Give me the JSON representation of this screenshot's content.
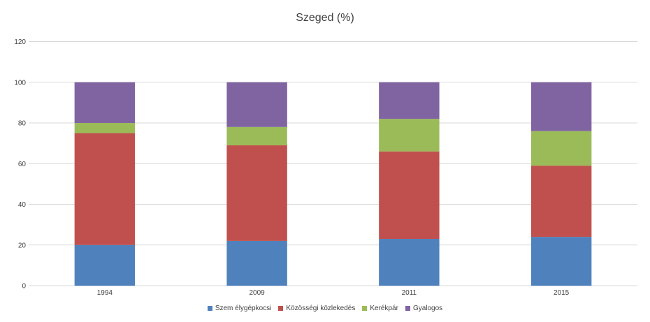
{
  "chart_data": {
    "type": "bar",
    "stacked": true,
    "title": "Szeged (%)",
    "xlabel": "",
    "ylabel": "",
    "categories": [
      "1994",
      "2009",
      "2011",
      "2015"
    ],
    "ylim": [
      0,
      120
    ],
    "yticks": [
      "0",
      "20",
      "40",
      "60",
      "80",
      "100",
      "120"
    ],
    "grid": true,
    "legend_position": "bottom",
    "series": [
      {
        "name": "Szem élygépkocsi",
        "color": "#4f81bd",
        "values": [
          20,
          22,
          23,
          24
        ]
      },
      {
        "name": "Közösségi közlekedés",
        "color": "#c0504d",
        "values": [
          55,
          47,
          43,
          35
        ]
      },
      {
        "name": "Kerékpár",
        "color": "#9bbb59",
        "values": [
          5,
          9,
          16,
          17
        ]
      },
      {
        "name": "Gyalogos",
        "color": "#8064a2",
        "values": [
          20,
          22,
          18,
          24
        ]
      }
    ]
  }
}
